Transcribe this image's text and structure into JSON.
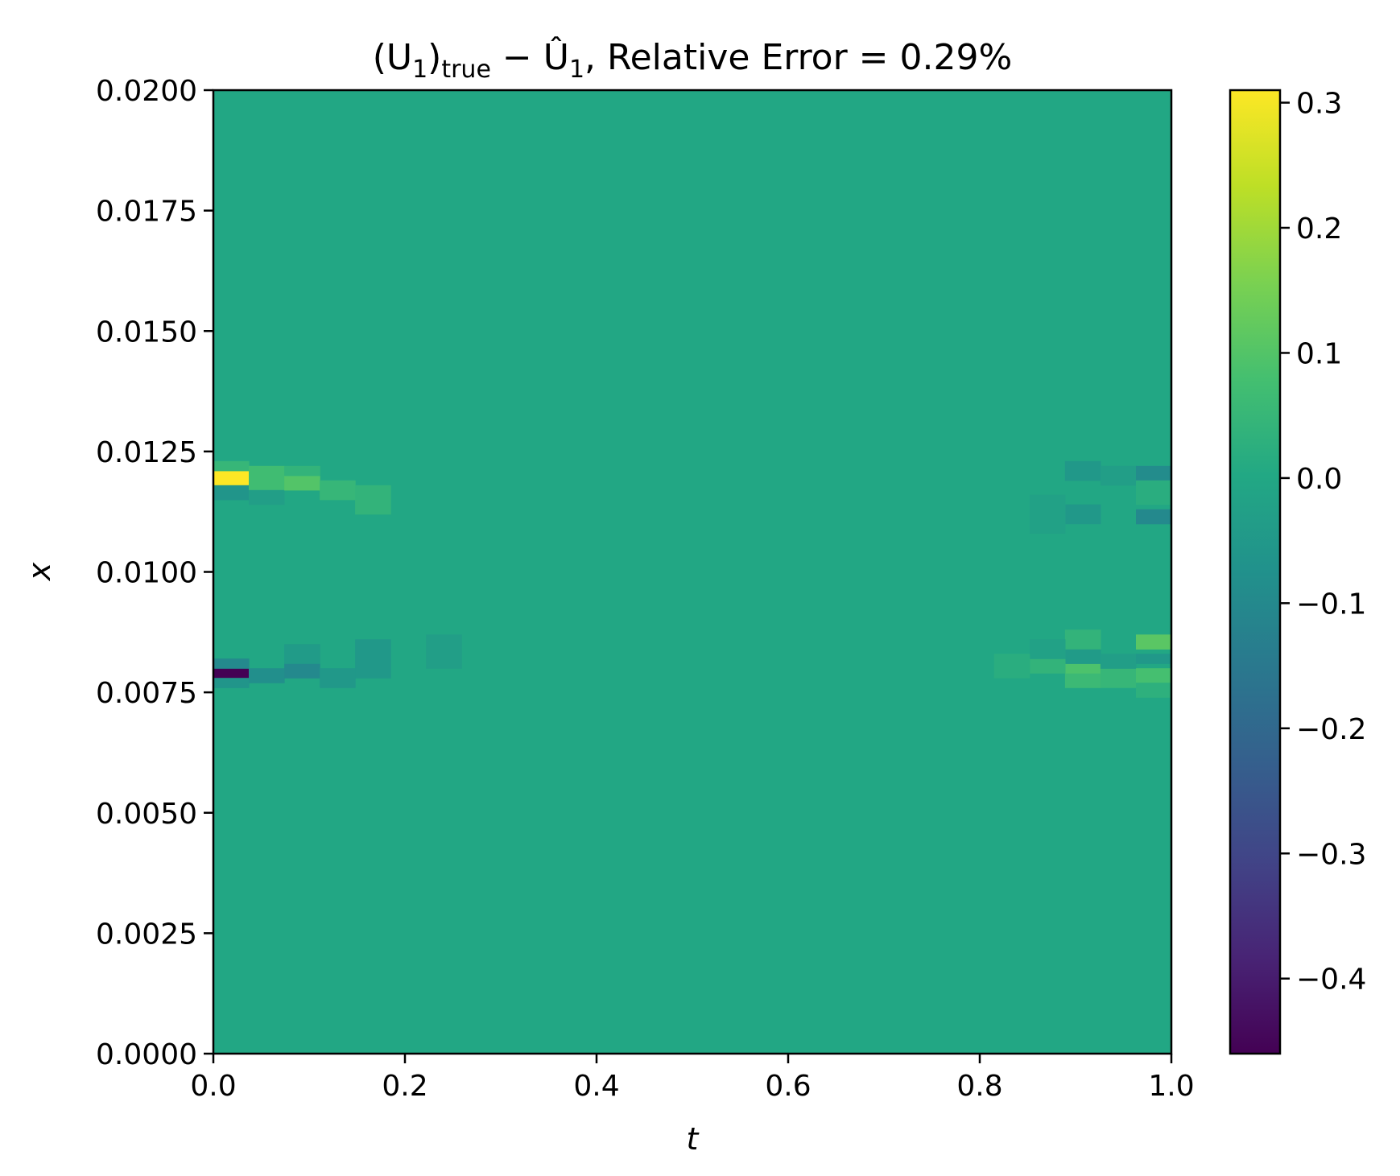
{
  "chart_data": {
    "type": "heatmap",
    "title": {
      "prefix": "(U",
      "prefix_sub": "1",
      "mid": ")",
      "mid_sub": "true",
      "minus": " − Û",
      "suffix_sub": "1",
      "suffix": ", Relative Error = 0.29%"
    },
    "xlabel": "t",
    "ylabel": "x",
    "xlim": [
      0.0,
      1.0
    ],
    "ylim": [
      0.0,
      0.02
    ],
    "xticks": [
      "0.0",
      "0.2",
      "0.4",
      "0.6",
      "0.8",
      "1.0"
    ],
    "yticks": [
      "0.0000",
      "0.0025",
      "0.0050",
      "0.0075",
      "0.0100",
      "0.0125",
      "0.0150",
      "0.0175",
      "0.0200"
    ],
    "colorbar": {
      "colormap": "viridis",
      "vmin": -0.46,
      "vmax": 0.31,
      "ticks": [
        "0.3",
        "0.2",
        "0.1",
        "0.0",
        "−0.1",
        "−0.2",
        "−0.3",
        "−0.4"
      ]
    },
    "background_value": 0.0,
    "cells": [
      {
        "t": [
          0.0,
          0.037
        ],
        "x": [
          0.0118,
          0.0121
        ],
        "value": 0.31
      },
      {
        "t": [
          0.0,
          0.037
        ],
        "x": [
          0.0121,
          0.0123
        ],
        "value": 0.05
      },
      {
        "t": [
          0.0,
          0.037
        ],
        "x": [
          0.0115,
          0.0118
        ],
        "value": -0.06
      },
      {
        "t": [
          0.037,
          0.074
        ],
        "x": [
          0.0117,
          0.0122
        ],
        "value": 0.07
      },
      {
        "t": [
          0.037,
          0.074
        ],
        "x": [
          0.0114,
          0.0117
        ],
        "value": -0.03
      },
      {
        "t": [
          0.074,
          0.111
        ],
        "x": [
          0.0117,
          0.012
        ],
        "value": 0.1
      },
      {
        "t": [
          0.074,
          0.111
        ],
        "x": [
          0.012,
          0.0122
        ],
        "value": 0.04
      },
      {
        "t": [
          0.111,
          0.148
        ],
        "x": [
          0.0115,
          0.0119
        ],
        "value": 0.05
      },
      {
        "t": [
          0.148,
          0.185
        ],
        "x": [
          0.0112,
          0.0118
        ],
        "value": 0.04
      },
      {
        "t": [
          0.0,
          0.037
        ],
        "x": [
          0.0078,
          0.008
        ],
        "value": -0.46
      },
      {
        "t": [
          0.0,
          0.037
        ],
        "x": [
          0.008,
          0.0082
        ],
        "value": -0.1
      },
      {
        "t": [
          0.0,
          0.037
        ],
        "x": [
          0.0076,
          0.0078
        ],
        "value": -0.06
      },
      {
        "t": [
          0.037,
          0.074
        ],
        "x": [
          0.0077,
          0.008
        ],
        "value": -0.08
      },
      {
        "t": [
          0.074,
          0.111
        ],
        "x": [
          0.0078,
          0.0081
        ],
        "value": -0.1
      },
      {
        "t": [
          0.074,
          0.111
        ],
        "x": [
          0.0081,
          0.0085
        ],
        "value": -0.04
      },
      {
        "t": [
          0.111,
          0.148
        ],
        "x": [
          0.0076,
          0.008
        ],
        "value": -0.05
      },
      {
        "t": [
          0.148,
          0.185
        ],
        "x": [
          0.0078,
          0.0086
        ],
        "value": -0.05
      },
      {
        "t": [
          0.222,
          0.259
        ],
        "x": [
          0.008,
          0.0087
        ],
        "value": -0.03
      },
      {
        "t": [
          0.889,
          0.926
        ],
        "x": [
          0.0119,
          0.0123
        ],
        "value": -0.05
      },
      {
        "t": [
          0.889,
          0.926
        ],
        "x": [
          0.011,
          0.0114
        ],
        "value": -0.05
      },
      {
        "t": [
          0.926,
          0.963
        ],
        "x": [
          0.0118,
          0.0122
        ],
        "value": -0.03
      },
      {
        "t": [
          0.963,
          1.0
        ],
        "x": [
          0.0119,
          0.0122
        ],
        "value": -0.09
      },
      {
        "t": [
          0.963,
          1.0
        ],
        "x": [
          0.011,
          0.0113
        ],
        "value": -0.1
      },
      {
        "t": [
          0.963,
          1.0
        ],
        "x": [
          0.0114,
          0.0119
        ],
        "value": 0.02
      },
      {
        "t": [
          0.852,
          0.889
        ],
        "x": [
          0.0108,
          0.0116
        ],
        "value": -0.02
      },
      {
        "t": [
          0.889,
          0.926
        ],
        "x": [
          0.0076,
          0.0079
        ],
        "value": 0.06
      },
      {
        "t": [
          0.889,
          0.926
        ],
        "x": [
          0.0079,
          0.0081
        ],
        "value": 0.09
      },
      {
        "t": [
          0.889,
          0.926
        ],
        "x": [
          0.0081,
          0.0084
        ],
        "value": -0.04
      },
      {
        "t": [
          0.889,
          0.926
        ],
        "x": [
          0.0084,
          0.0088
        ],
        "value": 0.04
      },
      {
        "t": [
          0.926,
          0.963
        ],
        "x": [
          0.0076,
          0.008
        ],
        "value": 0.05
      },
      {
        "t": [
          0.926,
          0.963
        ],
        "x": [
          0.008,
          0.0083
        ],
        "value": -0.03
      },
      {
        "t": [
          0.963,
          1.0
        ],
        "x": [
          0.0084,
          0.0087
        ],
        "value": 0.11
      },
      {
        "t": [
          0.963,
          1.0
        ],
        "x": [
          0.0081,
          0.0083
        ],
        "value": -0.05
      },
      {
        "t": [
          0.963,
          1.0
        ],
        "x": [
          0.0077,
          0.008
        ],
        "value": 0.08
      },
      {
        "t": [
          0.963,
          1.0
        ],
        "x": [
          0.0074,
          0.0077
        ],
        "value": 0.03
      },
      {
        "t": [
          0.852,
          0.889
        ],
        "x": [
          0.0079,
          0.0082
        ],
        "value": 0.04
      },
      {
        "t": [
          0.852,
          0.889
        ],
        "x": [
          0.0082,
          0.0086
        ],
        "value": -0.02
      },
      {
        "t": [
          0.815,
          0.852
        ],
        "x": [
          0.0078,
          0.0083
        ],
        "value": 0.02
      }
    ]
  }
}
